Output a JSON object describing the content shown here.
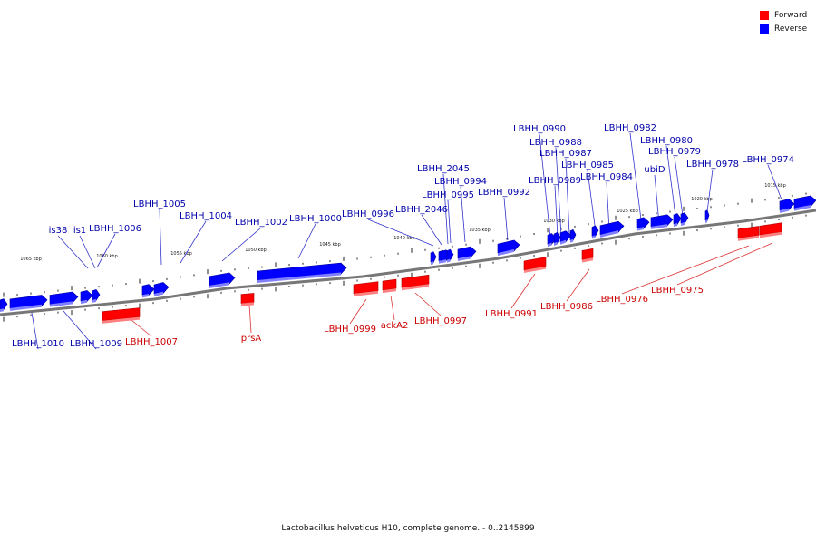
{
  "legend": {
    "forward_label": "Forward",
    "reverse_label": "Reverse",
    "forward_color": "#ff0000",
    "reverse_color": "#0000ff"
  },
  "caption": "Lactobacillus helveticus H10, complete genome. - 0..2145899",
  "scale_labels": [
    "1065 kbp",
    "1060 kbp",
    "1055 kbp",
    "1050 kbp",
    "1045 kbp",
    "1040 kbp",
    "1035 kbp",
    "1030 kbp",
    "1025 kbp",
    "1020 kbp",
    "1015 kbp"
  ],
  "genes": [
    {
      "name": "LBHH_1010",
      "strand": "reverse"
    },
    {
      "name": "LBHH_1009",
      "strand": "reverse"
    },
    {
      "name": "is38",
      "strand": "reverse"
    },
    {
      "name": "is1",
      "strand": "reverse"
    },
    {
      "name": "LBHH_1006",
      "strand": "reverse"
    },
    {
      "name": "LBHH_1007",
      "strand": "forward"
    },
    {
      "name": "LBHH_1005",
      "strand": "reverse"
    },
    {
      "name": "LBHH_1004",
      "strand": "reverse"
    },
    {
      "name": "LBHH_1002",
      "strand": "reverse"
    },
    {
      "name": "prsA",
      "strand": "forward"
    },
    {
      "name": "LBHH_1000",
      "strand": "reverse"
    },
    {
      "name": "LBHH_0999",
      "strand": "forward"
    },
    {
      "name": "ackA2",
      "strand": "forward"
    },
    {
      "name": "LBHH_0997",
      "strand": "forward"
    },
    {
      "name": "LBHH_0996",
      "strand": "reverse"
    },
    {
      "name": "LBHH_2046",
      "strand": "reverse"
    },
    {
      "name": "LBHH_2045",
      "strand": "reverse"
    },
    {
      "name": "LBHH_0995",
      "strand": "reverse"
    },
    {
      "name": "LBHH_0994",
      "strand": "reverse"
    },
    {
      "name": "LBHH_0992",
      "strand": "reverse"
    },
    {
      "name": "LBHH_0991",
      "strand": "forward"
    },
    {
      "name": "LBHH_0990",
      "strand": "reverse"
    },
    {
      "name": "LBHH_0989",
      "strand": "reverse"
    },
    {
      "name": "LBHH_0988",
      "strand": "reverse"
    },
    {
      "name": "LBHH_0987",
      "strand": "reverse"
    },
    {
      "name": "LBHH_0986",
      "strand": "forward"
    },
    {
      "name": "LBHH_0985",
      "strand": "reverse"
    },
    {
      "name": "LBHH_0984",
      "strand": "reverse"
    },
    {
      "name": "LBHH_0982",
      "strand": "reverse"
    },
    {
      "name": "ubiD",
      "strand": "reverse"
    },
    {
      "name": "LBHH_0980",
      "strand": "reverse"
    },
    {
      "name": "LBHH_0979",
      "strand": "reverse"
    },
    {
      "name": "LBHH_0978",
      "strand": "reverse"
    },
    {
      "name": "LBHH_0976",
      "strand": "forward"
    },
    {
      "name": "LBHH_0975",
      "strand": "forward"
    },
    {
      "name": "LBHH_0974",
      "strand": "reverse"
    }
  ]
}
